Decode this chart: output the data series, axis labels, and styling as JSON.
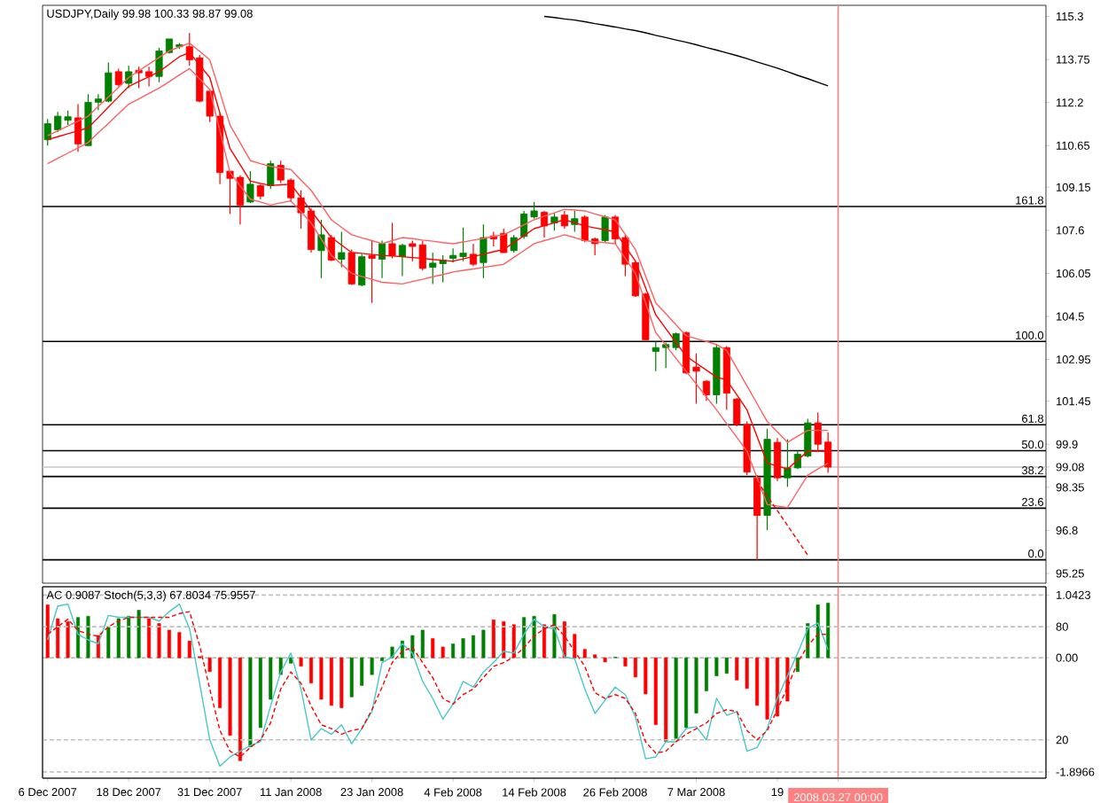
{
  "chart_data": [
    {
      "type": "candlestick",
      "title": "USDJPY,Daily 99.98 100.33 98.87 99.08",
      "tick_labels": "y",
      "categories": [
        "6 Dec 2007",
        null,
        null,
        null,
        null,
        null,
        null,
        null,
        "18 Dec 2007",
        null,
        null,
        null,
        null,
        null,
        null,
        null,
        "31 Dec 2007",
        null,
        null,
        null,
        null,
        null,
        null,
        null,
        "11 Jan 2008",
        null,
        null,
        null,
        null,
        null,
        null,
        null,
        "23 Jan 2008",
        null,
        null,
        null,
        null,
        null,
        null,
        null,
        "4 Feb 2008",
        null,
        null,
        null,
        null,
        null,
        null,
        null,
        "14 Feb 2008",
        null,
        null,
        null,
        null,
        null,
        null,
        null,
        "26 Feb 2008",
        null,
        null,
        null,
        null,
        null,
        null,
        null,
        "7 Mar 2008",
        null,
        null,
        null,
        null,
        null,
        null,
        null,
        "19",
        null,
        null,
        null,
        null,
        null,
        "2008.03.27 00:00",
        null,
        null,
        null,
        null,
        null,
        null,
        null,
        null,
        null,
        null,
        null,
        null,
        null,
        null,
        null,
        null,
        null,
        null,
        null,
        null
      ],
      "ohlc": [
        [
          110.86,
          111.61,
          110.65,
          111.44
        ],
        [
          111.22,
          111.86,
          111.14,
          111.71
        ],
        [
          111.56,
          111.91,
          111.39,
          111.69
        ],
        [
          111.65,
          112.14,
          110.43,
          110.71
        ],
        [
          110.65,
          112.5,
          110.65,
          112.21
        ],
        [
          112.21,
          112.5,
          111.93,
          112.33
        ],
        [
          112.25,
          113.64,
          112.21,
          113.27
        ],
        [
          113.31,
          113.42,
          112.78,
          112.84
        ],
        [
          112.89,
          113.53,
          112.72,
          113.31
        ],
        [
          113.36,
          113.49,
          112.72,
          113.27
        ],
        [
          113.31,
          113.49,
          112.78,
          113.14
        ],
        [
          113.14,
          114.17,
          112.93,
          114.06
        ],
        [
          114.0,
          114.49,
          113.96,
          114.49
        ],
        [
          114.21,
          114.34,
          114.13,
          114.28
        ],
        [
          114.21,
          114.7,
          113.53,
          113.74
        ],
        [
          113.81,
          113.91,
          112.21,
          112.25
        ],
        [
          112.61,
          112.67,
          111.5,
          111.71
        ],
        [
          111.71,
          111.82,
          109.26,
          109.68
        ],
        [
          109.73,
          109.73,
          108.19,
          109.47
        ],
        [
          109.51,
          109.58,
          107.81,
          108.51
        ],
        [
          108.62,
          109.73,
          108.58,
          109.26
        ],
        [
          109.21,
          109.26,
          108.72,
          108.83
        ],
        [
          109.21,
          110.11,
          109.09,
          110.0
        ],
        [
          109.94,
          110.11,
          109.3,
          109.41
        ],
        [
          109.41,
          109.47,
          108.62,
          108.77
        ],
        [
          108.77,
          109.04,
          107.66,
          108.23
        ],
        [
          108.3,
          108.4,
          106.8,
          106.91
        ],
        [
          106.87,
          107.98,
          105.88,
          107.44
        ],
        [
          107.34,
          107.44,
          106.49,
          106.53
        ],
        [
          106.56,
          107.55,
          106.27,
          106.8
        ],
        [
          106.8,
          106.91,
          105.63,
          105.67
        ],
        [
          105.63,
          106.74,
          105.59,
          106.65
        ],
        [
          106.7,
          107.23,
          104.99,
          106.59
        ],
        [
          106.56,
          107.23,
          105.88,
          107.12
        ],
        [
          107.12,
          107.87,
          106.59,
          106.7
        ],
        [
          106.65,
          107.12,
          105.95,
          107.06
        ],
        [
          107.12,
          107.23,
          106.49,
          107.02
        ],
        [
          107.08,
          107.23,
          106.16,
          106.23
        ],
        [
          106.27,
          106.8,
          105.67,
          106.42
        ],
        [
          106.4,
          106.7,
          105.73,
          106.53
        ],
        [
          106.59,
          106.95,
          106.44,
          106.7
        ],
        [
          106.65,
          107.7,
          106.49,
          106.78
        ],
        [
          106.74,
          107.12,
          106.31,
          106.38
        ],
        [
          106.44,
          107.81,
          105.88,
          107.34
        ],
        [
          107.4,
          107.55,
          107.02,
          107.29
        ],
        [
          107.49,
          107.66,
          106.78,
          106.8
        ],
        [
          106.87,
          107.44,
          106.8,
          107.34
        ],
        [
          107.38,
          108.3,
          107.29,
          108.19
        ],
        [
          108.08,
          108.62,
          108.02,
          108.3
        ],
        [
          108.25,
          108.3,
          107.34,
          107.76
        ],
        [
          107.87,
          108.23,
          107.59,
          108.08
        ],
        [
          108.15,
          108.3,
          107.66,
          107.76
        ],
        [
          107.81,
          108.3,
          107.55,
          108.02
        ],
        [
          108.08,
          108.15,
          107.17,
          107.23
        ],
        [
          107.29,
          107.34,
          106.7,
          107.12
        ],
        [
          107.23,
          108.15,
          107.17,
          108.08
        ],
        [
          108.08,
          108.15,
          107.12,
          107.29
        ],
        [
          107.34,
          107.44,
          105.95,
          106.38
        ],
        [
          106.44,
          106.49,
          105.2,
          105.24
        ],
        [
          105.31,
          105.35,
          103.66,
          103.66
        ],
        [
          103.24,
          103.6,
          102.53,
          103.38
        ],
        [
          103.38,
          103.56,
          102.64,
          103.49
        ],
        [
          103.38,
          103.92,
          103.28,
          103.88
        ],
        [
          103.92,
          103.96,
          102.43,
          102.47
        ],
        [
          102.68,
          103.17,
          101.36,
          102.53
        ],
        [
          102.17,
          102.21,
          101.46,
          101.68
        ],
        [
          101.68,
          103.49,
          101.36,
          103.38
        ],
        [
          103.38,
          103.43,
          101.14,
          101.74
        ],
        [
          101.53,
          101.57,
          100.55,
          100.61
        ],
        [
          100.61,
          100.72,
          98.79,
          98.9
        ],
        [
          98.69,
          98.79,
          95.74,
          97.34
        ],
        [
          97.34,
          100.46,
          96.81,
          100.08
        ],
        [
          99.97,
          100.12,
          98.58,
          98.69
        ],
        [
          98.69,
          100.08,
          98.37,
          99.05
        ],
        [
          99.05,
          99.65,
          99.01,
          99.54
        ],
        [
          99.48,
          100.82,
          99.43,
          100.67
        ],
        [
          100.67,
          101.04,
          99.65,
          99.9
        ],
        [
          99.98,
          100.33,
          98.87,
          99.08
        ],
        null,
        null,
        null,
        null,
        null,
        null,
        null,
        null,
        null,
        null,
        null,
        null,
        null,
        null,
        null,
        null,
        null,
        null,
        null,
        null,
        null
      ],
      "colors": [
        "#008000",
        "#008000",
        "#008000",
        "#ff0000",
        "#008000",
        "#008000",
        "#008000",
        "#ff0000",
        "#008000",
        "#ff0000",
        "#ff0000",
        "#008000",
        "#008000",
        "#008000",
        "#ff0000",
        "#ff0000",
        "#ff0000",
        "#ff0000",
        "#ff0000",
        "#ff0000",
        "#008000",
        "#ff0000",
        "#008000",
        "#ff0000",
        "#ff0000",
        "#ff0000",
        "#ff0000",
        "#008000",
        "#ff0000",
        "#008000",
        "#ff0000",
        "#008000",
        "#ff0000",
        "#008000",
        "#ff0000",
        "#008000",
        "#ff0000",
        "#ff0000",
        "#008000",
        "#008000",
        "#008000",
        "#008000",
        "#ff0000",
        "#008000",
        "#ff0000",
        "#ff0000",
        "#008000",
        "#008000",
        "#008000",
        "#ff0000",
        "#008000",
        "#ff0000",
        "#008000",
        "#ff0000",
        "#ff0000",
        "#008000",
        "#ff0000",
        "#ff0000",
        "#ff0000",
        "#ff0000",
        "#008000",
        "#008000",
        "#008000",
        "#ff0000",
        "#ff0000",
        "#ff0000",
        "#008000",
        "#ff0000",
        "#ff0000",
        "#ff0000",
        "#ff0000",
        "#008000",
        "#ff0000",
        "#008000",
        "#008000",
        "#008000",
        "#ff0000",
        "#ff0000",
        null,
        null,
        null,
        null,
        null,
        null,
        null,
        null,
        null,
        null,
        null,
        null,
        null,
        null,
        null,
        null,
        null,
        null,
        null,
        null,
        null
      ],
      "series": [
        {
          "type": "line",
          "color": "#ff6060",
          "values": [
            111.01,
            111.18,
            111.36,
            111.53,
            111.71,
            112.06,
            112.4,
            112.75,
            113.1,
            113.34,
            113.58,
            113.82,
            114.06,
            114.2,
            114.34,
            114.04,
            113.74,
            112.57,
            111.39,
            110.75,
            110.11,
            110.0,
            109.9,
            109.84,
            109.79,
            109.41,
            109.04,
            108.51,
            107.98,
            107.71,
            107.44,
            107.33,
            107.23,
            107.12,
            107.23,
            107.34,
            107.3,
            107.25,
            107.21,
            107.16,
            107.12,
            107.18,
            107.25,
            107.31,
            107.38,
            107.44,
            107.62,
            107.8,
            107.98,
            108.11,
            108.23,
            108.36,
            108.33,
            108.3,
            108.19,
            108.09,
            107.98,
            107.45,
            106.91,
            105.95,
            104.99,
            104.6,
            104.2,
            103.81,
            103.7,
            103.6,
            103.49,
            103.28,
            102.64,
            102.0,
            101.36,
            100.72,
            100.35,
            99.97,
            100.19,
            100.4,
            100.4,
            100.4,
            null,
            null,
            null,
            null,
            null,
            null,
            null,
            null,
            null,
            null,
            null,
            null,
            null,
            null,
            null,
            null,
            null,
            null,
            null,
            null,
            null
          ]
        },
        {
          "type": "line",
          "color": "#ff0000",
          "values": [
            110.86,
            110.97,
            111.08,
            111.18,
            111.29,
            111.66,
            112.04,
            112.41,
            112.78,
            112.96,
            113.13,
            113.31,
            113.58,
            113.85,
            114.0,
            113.55,
            113.1,
            111.82,
            110.54,
            109.96,
            109.37,
            109.29,
            109.21,
            109.24,
            109.26,
            108.78,
            108.3,
            107.82,
            107.34,
            107.07,
            106.8,
            106.77,
            106.73,
            106.7,
            106.68,
            106.65,
            106.62,
            106.59,
            106.55,
            106.52,
            106.49,
            106.57,
            106.66,
            106.74,
            106.83,
            106.91,
            107.16,
            107.41,
            107.66,
            107.77,
            107.87,
            107.98,
            107.87,
            107.76,
            107.69,
            107.62,
            107.55,
            107.02,
            106.49,
            105.53,
            104.56,
            104.06,
            103.57,
            103.07,
            102.82,
            102.57,
            102.32,
            102.21,
            101.68,
            101.14,
            100.18,
            99.22,
            99.12,
            99.01,
            99.33,
            99.65,
            99.65,
            99.65,
            null,
            null,
            null,
            null,
            null,
            null,
            null,
            null,
            null,
            null,
            null,
            null,
            null,
            null,
            null,
            null,
            null,
            null,
            null,
            null,
            null
          ]
        },
        {
          "type": "line",
          "color": "#ff6060",
          "values": [
            110.0,
            110.19,
            110.38,
            110.57,
            110.76,
            111.11,
            111.45,
            111.8,
            112.14,
            112.33,
            112.53,
            112.72,
            112.95,
            113.19,
            113.42,
            113.05,
            112.67,
            111.18,
            109.68,
            109.2,
            108.72,
            108.62,
            108.51,
            108.59,
            108.66,
            108.27,
            107.87,
            107.29,
            106.7,
            106.38,
            106.05,
            105.94,
            105.84,
            105.73,
            105.7,
            105.67,
            105.76,
            105.84,
            105.93,
            106.01,
            106.1,
            106.16,
            106.21,
            106.27,
            106.32,
            106.38,
            106.63,
            106.87,
            107.12,
            107.23,
            107.33,
            107.44,
            107.34,
            107.23,
            107.19,
            107.16,
            107.12,
            106.59,
            106.05,
            104.99,
            103.92,
            103.46,
            102.99,
            102.53,
            102.07,
            101.6,
            101.14,
            100.64,
            100.15,
            99.65,
            98.69,
            97.73,
            97.68,
            97.62,
            98.21,
            98.79,
            99.01,
            99.22,
            null,
            null,
            null,
            null,
            null,
            null,
            null,
            null,
            null,
            null,
            null,
            null,
            null,
            null,
            null,
            null,
            null,
            null,
            null,
            null,
            null
          ]
        },
        {
          "type": "line",
          "color": "#ff0000",
          "line_style": "dashed",
          "values": [
            null,
            null,
            null,
            null,
            null,
            null,
            null,
            null,
            null,
            null,
            null,
            null,
            null,
            null,
            null,
            null,
            null,
            null,
            null,
            null,
            null,
            null,
            null,
            null,
            null,
            null,
            null,
            null,
            null,
            null,
            null,
            null,
            null,
            null,
            null,
            null,
            null,
            null,
            null,
            null,
            null,
            null,
            null,
            null,
            null,
            null,
            null,
            null,
            null,
            null,
            null,
            null,
            null,
            null,
            null,
            null,
            null,
            null,
            null,
            null,
            null,
            null,
            null,
            null,
            null,
            null,
            null,
            null,
            null,
            null,
            98.58,
            98.04,
            97.51,
            96.98,
            96.44,
            95.91,
            null,
            null,
            null,
            null,
            null,
            null,
            null,
            null,
            null,
            null,
            null,
            null,
            null,
            null,
            null,
            null,
            null,
            null,
            null,
            null,
            null,
            null,
            null
          ]
        },
        {
          "type": "line",
          "color": "#000000",
          "values": [
            null,
            null,
            null,
            null,
            null,
            null,
            null,
            null,
            null,
            null,
            null,
            null,
            null,
            null,
            null,
            null,
            null,
            null,
            null,
            null,
            null,
            null,
            null,
            null,
            null,
            null,
            null,
            null,
            null,
            null,
            null,
            null,
            null,
            null,
            null,
            null,
            null,
            null,
            null,
            null,
            null,
            null,
            null,
            null,
            null,
            null,
            null,
            null,
            null,
            115.3,
            115.26,
            115.21,
            115.17,
            115.11,
            115.04,
            114.98,
            114.92,
            114.85,
            114.79,
            114.71,
            114.62,
            114.54,
            114.45,
            114.37,
            114.28,
            114.18,
            114.09,
            113.99,
            113.89,
            113.78,
            113.66,
            113.55,
            113.44,
            113.31,
            113.18,
            113.06,
            112.93,
            112.8,
            null,
            null,
            null,
            null,
            null,
            null,
            null,
            null,
            null,
            null,
            null,
            null,
            null,
            null,
            null,
            null,
            null,
            null,
            null,
            null,
            null
          ]
        }
      ],
      "ylim": [
        94.9,
        115.7
      ],
      "yticks": [
        115.3,
        113.75,
        112.2,
        110.65,
        109.15,
        107.6,
        106.05,
        104.5,
        102.95,
        101.45,
        99.9,
        99.08,
        98.35,
        96.8,
        95.25
      ],
      "annotations": [
        {
          "text": "161.8",
          "y": 108.46
        },
        {
          "text": "100.0",
          "y": 103.6
        },
        {
          "text": "61.8",
          "y": 100.6
        },
        {
          "text": "50.0",
          "y": 99.67
        },
        {
          "text": "38.2",
          "y": 98.74
        },
        {
          "text": "23.6",
          "y": 97.6
        },
        {
          "text": "0.0",
          "y": 95.74
        }
      ],
      "ref_lines": [
        {
          "axis": "y",
          "value": 108.46,
          "color": "#000000"
        },
        {
          "axis": "y",
          "value": 103.6,
          "color": "#000000"
        },
        {
          "axis": "y",
          "value": 100.6,
          "color": "#000000"
        },
        {
          "axis": "y",
          "value": 99.67,
          "color": "#000000"
        },
        {
          "axis": "y",
          "value": 98.74,
          "color": "#000000"
        },
        {
          "axis": "y",
          "value": 97.6,
          "color": "#000000"
        },
        {
          "axis": "y",
          "value": 95.74,
          "color": "#000000"
        },
        {
          "axis": "y",
          "value": 99.08,
          "color": "#c8c8c8"
        },
        {
          "axis": "x",
          "value": "2008.03.27 00:00",
          "color": "#ff8080"
        }
      ]
    },
    {
      "type": "bar",
      "title": "AC 0.9087 Stoch(5,3,3) 67.8034 75.9557",
      "categories": [
        "6 Dec 2007",
        null,
        null,
        null,
        null,
        null,
        null,
        null,
        "18 Dec 2007",
        null,
        null,
        null,
        null,
        null,
        null,
        null,
        "31 Dec 2007",
        null,
        null,
        null,
        null,
        null,
        null,
        null,
        "11 Jan 2008",
        null,
        null,
        null,
        null,
        null,
        null,
        null,
        "23 Jan 2008",
        null,
        null,
        null,
        null,
        null,
        null,
        null,
        "4 Feb 2008",
        null,
        null,
        null,
        null,
        null,
        null,
        null,
        "14 Feb 2008",
        null,
        null,
        null,
        null,
        null,
        null,
        null,
        "26 Feb 2008",
        null,
        null,
        null,
        null,
        null,
        null,
        null,
        "7 Mar 2008",
        null,
        null,
        null,
        null,
        null,
        null,
        null,
        "19",
        null,
        null,
        null,
        null,
        null,
        "2008.03.27 00:00",
        null,
        null,
        null,
        null,
        null,
        null,
        null,
        null,
        null,
        null,
        null,
        null,
        null,
        null,
        null,
        null,
        null,
        null,
        null,
        null
      ],
      "series": [
        {
          "type": "bar",
          "values": [
            0.88,
            0.65,
            0.6,
            0.67,
            0.69,
            0.37,
            0.51,
            0.65,
            0.69,
            0.79,
            0.65,
            0.57,
            0.46,
            0.42,
            0.28,
            0.02,
            -0.23,
            -0.83,
            -1.29,
            -1.71,
            -1.48,
            -1.16,
            -0.69,
            -0.28,
            -0.09,
            -0.14,
            -0.42,
            -0.69,
            -0.79,
            -0.83,
            -0.65,
            -0.46,
            -0.28,
            -0.05,
            0.18,
            0.28,
            0.37,
            0.46,
            0.32,
            0.18,
            0.23,
            0.32,
            0.37,
            0.46,
            0.63,
            0.6,
            0.55,
            0.67,
            0.69,
            0.55,
            0.72,
            0.6,
            0.39,
            0.14,
            0.05,
            -0.07,
            0.01,
            -0.14,
            -0.32,
            -0.6,
            -1.11,
            -1.39,
            -1.34,
            -1.16,
            -0.92,
            -0.55,
            -0.3,
            -0.26,
            -0.37,
            -0.51,
            -0.79,
            -1.02,
            -0.97,
            -0.72,
            -0.23,
            0.57,
            0.88,
            0.9087,
            null,
            null,
            null,
            null,
            null,
            null,
            null,
            null,
            null,
            null,
            null,
            null,
            null,
            null,
            null,
            null,
            null,
            null,
            null,
            null,
            null
          ],
          "colors": [
            "#ff0000",
            "#ff0000",
            "#ff0000",
            "#008000",
            "#008000",
            "#ff0000",
            "#008000",
            "#008000",
            "#008000",
            "#008000",
            "#ff0000",
            "#ff0000",
            "#ff0000",
            "#ff0000",
            "#ff0000",
            "#ff0000",
            "#ff0000",
            "#ff0000",
            "#ff0000",
            "#ff0000",
            "#008000",
            "#008000",
            "#008000",
            "#008000",
            "#008000",
            "#ff0000",
            "#ff0000",
            "#ff0000",
            "#ff0000",
            "#ff0000",
            "#008000",
            "#008000",
            "#008000",
            "#008000",
            "#008000",
            "#008000",
            "#008000",
            "#008000",
            "#ff0000",
            "#ff0000",
            "#008000",
            "#008000",
            "#008000",
            "#008000",
            "#ff0000",
            "#ff0000",
            "#ff0000",
            "#008000",
            "#008000",
            "#ff0000",
            "#008000",
            "#ff0000",
            "#ff0000",
            "#ff0000",
            "#ff0000",
            "#ff0000",
            "#008000",
            "#ff0000",
            "#ff0000",
            "#ff0000",
            "#ff0000",
            "#ff0000",
            "#008000",
            "#008000",
            "#008000",
            "#008000",
            "#008000",
            "#008000",
            "#ff0000",
            "#ff0000",
            "#ff0000",
            "#ff0000",
            "#ff0000",
            "#ff0000",
            "#008000",
            "#008000",
            "#008000",
            "#008000",
            null,
            null,
            null,
            null,
            null,
            null,
            null,
            null,
            null,
            null,
            null,
            null,
            null,
            null,
            null,
            null,
            null,
            null,
            null,
            null,
            null
          ]
        },
        {
          "type": "line",
          "color": "#48c8c8",
          "axis": "y2",
          "values": [
            73,
            91,
            92,
            76,
            73,
            71,
            86,
            85,
            85,
            85,
            85,
            83,
            88,
            92,
            79,
            50,
            20,
            6,
            11,
            14,
            17,
            19,
            38,
            56,
            66,
            47,
            20,
            26,
            23,
            28,
            18,
            26,
            35,
            61,
            64,
            71,
            66,
            51,
            42,
            31,
            39,
            51,
            48,
            56,
            61,
            67,
            66,
            76,
            84,
            80,
            79,
            64,
            63,
            47,
            34,
            41,
            48,
            44,
            32,
            10,
            11,
            19,
            19,
            26,
            27,
            20,
            42,
            33,
            35,
            14,
            16,
            26,
            42,
            54,
            66,
            79,
            82,
            67.8034,
            null,
            null,
            null,
            null,
            null,
            null,
            null,
            null,
            null,
            null,
            null,
            null,
            null,
            null,
            null,
            null,
            null,
            null,
            null,
            null,
            null
          ]
        },
        {
          "type": "line",
          "color": "#ff0000",
          "axis": "y2",
          "line_style": "dashed",
          "values": [
            76,
            80,
            84,
            78,
            76,
            75,
            80,
            83,
            85,
            85,
            85,
            85,
            85,
            87,
            88,
            70,
            47,
            25,
            14,
            11,
            16,
            20,
            29,
            47,
            56,
            50,
            38,
            28,
            26,
            23,
            25,
            26,
            36,
            48,
            61,
            67,
            69,
            61,
            53,
            42,
            39,
            44,
            47,
            53,
            59,
            61,
            64,
            69,
            75,
            79,
            81,
            75,
            67,
            59,
            45,
            42,
            44,
            42,
            34,
            19,
            13,
            14,
            19,
            23,
            26,
            29,
            34,
            36,
            35,
            25,
            20,
            25,
            36,
            48,
            61,
            70,
            76,
            75.9557,
            null,
            null,
            null,
            null,
            null,
            null,
            null,
            null,
            null,
            null,
            null,
            null,
            null,
            null,
            null,
            null,
            null,
            null,
            null,
            null,
            null
          ]
        }
      ],
      "ylim": [
        -2.0,
        1.18
      ],
      "yticks": [
        1.0423,
        {
          "value": 0,
          "label": "0.00"
        },
        -1.8966
      ],
      "y2lim": [
        -0.3,
        101.2
      ],
      "y2ticks": [
        80,
        20
      ],
      "grid": "y",
      "ref_lines": [
        {
          "axis": "x",
          "value": "2008.03.27 00:00",
          "color": "#ff8080"
        }
      ]
    }
  ]
}
